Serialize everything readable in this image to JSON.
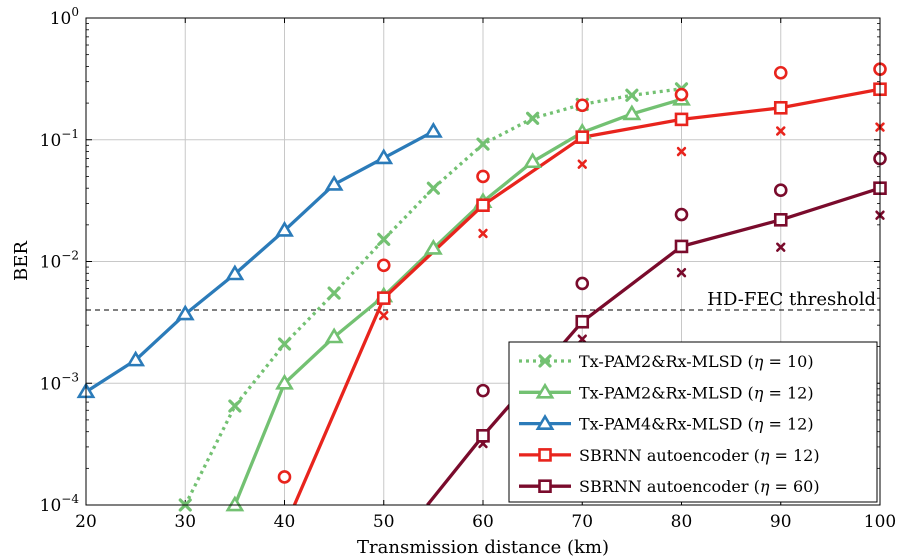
{
  "chart_data": {
    "type": "line",
    "xlabel": "Transmission distance (km)",
    "ylabel": "BER",
    "xlim": [
      20,
      100
    ],
    "ylim": [
      0.0001,
      1
    ],
    "yscale": "log",
    "grid": true,
    "legend_position": "bottom-right",
    "x_ticks": [
      "20",
      "30",
      "40",
      "50",
      "60",
      "70",
      "80",
      "90",
      "100"
    ],
    "y_ticks": [
      {
        "base": "10",
        "exp": "−4"
      },
      {
        "base": "10",
        "exp": "−3"
      },
      {
        "base": "10",
        "exp": "−2"
      },
      {
        "base": "10",
        "exp": "−1"
      },
      {
        "base": "10",
        "exp": "0"
      }
    ],
    "annotation": {
      "text": "HD-FEC threshold",
      "y": 0.004
    },
    "series": [
      {
        "name": "Tx-PAM2&Rx-MLSD (η = 10)",
        "legend": {
          "prefix": "Tx-PAM2&Rx-MLSD (",
          "var": "η",
          "suffix": " = 10)"
        },
        "color": "#73C172",
        "marker": "x",
        "dashed": true,
        "x": [
          30,
          35,
          40,
          45,
          50,
          55,
          60,
          65,
          70,
          75,
          80
        ],
        "y": [
          0.0001,
          0.00065,
          0.0021,
          0.0055,
          0.0152,
          0.04,
          0.092,
          0.15,
          0.195,
          0.232,
          0.262
        ]
      },
      {
        "name": "Tx-PAM2&Rx-MLSD (η = 12)",
        "legend": {
          "prefix": "Tx-PAM2&Rx-MLSD (",
          "var": "η",
          "suffix": " = 12)"
        },
        "color": "#73C172",
        "marker": "triangle",
        "dashed": false,
        "x": [
          35,
          40,
          45,
          50,
          55,
          60,
          65,
          70,
          75,
          80
        ],
        "y": [
          0.0001,
          0.001,
          0.0024,
          0.0052,
          0.0128,
          0.031,
          0.066,
          0.115,
          0.163,
          0.215
        ]
      },
      {
        "name": "Tx-PAM4&Rx-MLSD (η = 12)",
        "legend": {
          "prefix": "Tx-PAM4&Rx-MLSD (",
          "var": "η",
          "suffix": " = 12)"
        },
        "color": "#2B7BB9",
        "marker": "triangle",
        "dashed": false,
        "x": [
          20,
          25,
          30,
          35,
          40,
          45,
          50,
          55
        ],
        "y": [
          0.00085,
          0.00155,
          0.0037,
          0.0079,
          0.018,
          0.043,
          0.071,
          0.117
        ]
      },
      {
        "name": "SBRNN autoencoder (η = 12)",
        "legend": {
          "prefix": "SBRNN autoencoder (",
          "var": "η",
          "suffix": " = 12)"
        },
        "color": "#E8241D",
        "marker": "square",
        "dashed": false,
        "x": [
          41,
          50,
          60,
          70,
          80,
          90,
          100
        ],
        "y": [
          0.0001,
          0.005,
          0.029,
          0.105,
          0.147,
          0.183,
          0.26
        ],
        "upper_points": {
          "x": [
            40,
            50,
            60,
            70,
            80,
            90,
            100
          ],
          "y": [
            0.00017,
            0.0093,
            0.05,
            0.192,
            0.235,
            0.355,
            0.38
          ]
        },
        "lower_points": {
          "x": [
            50,
            60,
            70,
            80,
            90,
            100
          ],
          "y": [
            0.0036,
            0.017,
            0.063,
            0.08,
            0.118,
            0.127
          ]
        }
      },
      {
        "name": "SBRNN autoencoder (η = 60)",
        "legend": {
          "prefix": "SBRNN autoencoder (",
          "var": "η",
          "suffix": " = 60)"
        },
        "color": "#7A0B2C",
        "marker": "square",
        "dashed": false,
        "x": [
          54.4,
          60,
          70,
          80,
          90,
          100
        ],
        "y": [
          0.0001,
          0.00037,
          0.0032,
          0.0133,
          0.022,
          0.04
        ],
        "upper_points": {
          "x": [
            60,
            70,
            80,
            90,
            100
          ],
          "y": [
            0.00087,
            0.0066,
            0.0243,
            0.0385,
            0.07
          ]
        },
        "lower_points": {
          "x": [
            60,
            70,
            80,
            90,
            100
          ],
          "y": [
            0.00032,
            0.0023,
            0.0081,
            0.0131,
            0.024
          ]
        }
      }
    ]
  }
}
